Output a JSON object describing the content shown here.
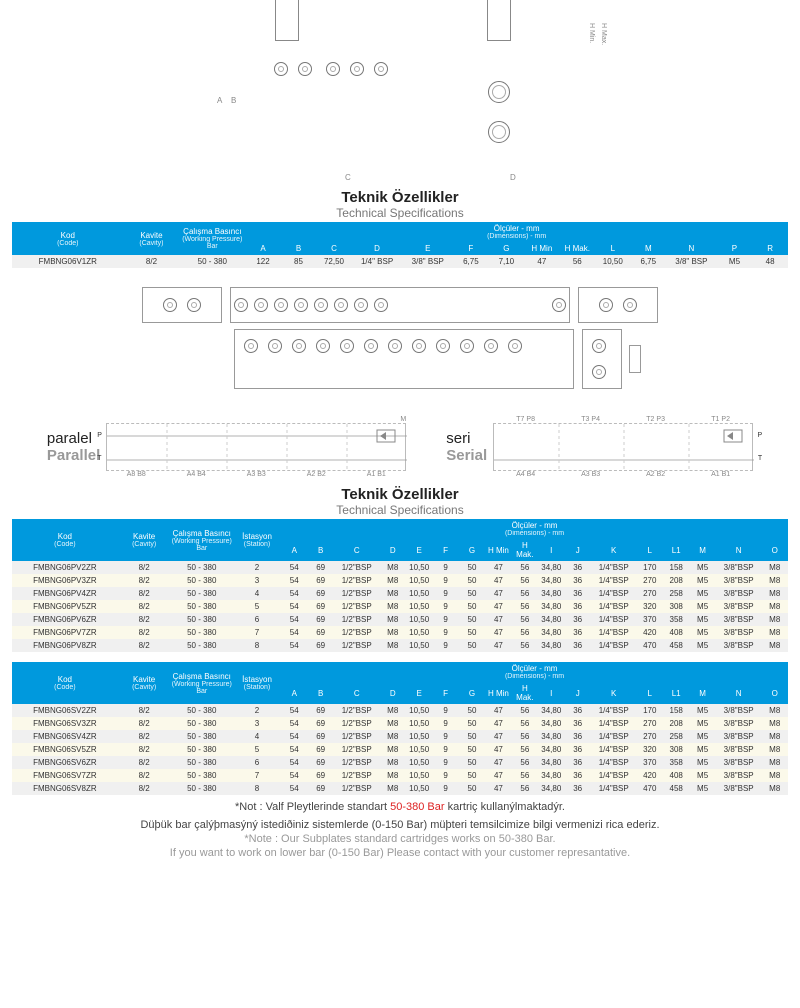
{
  "colors": {
    "headerBg": "#0099dd",
    "headerText": "#ffffff",
    "rowEven": "#fbf9ea",
    "rowOdd": "#f0f0f0",
    "red": "#d22"
  },
  "titles": {
    "spec_tr": "Teknik Özellikler",
    "spec_en": "Technical Specifications"
  },
  "circuitLabels": {
    "parallel_tr": "paralel",
    "parallel_en": "Parallel",
    "serial_tr": "seri",
    "serial_en": "Serial"
  },
  "table1": {
    "headers": {
      "code": "Kod",
      "code_en": "(Code)",
      "cavity": "Kavite",
      "cavity_en": "(Cavity)",
      "wp": "Çalışma Basıncı",
      "wp_en": "(Working Pressure)",
      "wp_unit": "Bar",
      "dims": "Ölçüler - mm",
      "dims_en": "(Dimensions) - mm",
      "cols": [
        "A",
        "B",
        "C",
        "D",
        "E",
        "F",
        "G",
        "H Min",
        "H Mak.",
        "L",
        "M",
        "N",
        "P",
        "R"
      ]
    },
    "row": {
      "code": "FMBNG06V1ZR",
      "cavity": "8/2",
      "wp": "50 - 380",
      "vals": [
        "122",
        "85",
        "72,50",
        "1/4\" BSP",
        "3/8\" BSP",
        "6,75",
        "7,10",
        "47",
        "56",
        "10,50",
        "6,75",
        "3/8\" BSP",
        "M5",
        "48"
      ]
    }
  },
  "table2": {
    "headers": {
      "code": "Kod",
      "code_en": "(Code)",
      "cavity": "Kavite",
      "cavity_en": "(Cavity)",
      "wp": "Çalışma Basıncı",
      "wp_en": "(Working Pressure)",
      "wp_unit": "Bar",
      "station": "İstasyon",
      "station_en": "(Station)",
      "dims": "Ölçüler - mm",
      "dims_en": "(Dimensions) - mm",
      "cols": [
        "A",
        "B",
        "C",
        "D",
        "E",
        "F",
        "G",
        "H Min",
        "H Mak.",
        "I",
        "J",
        "K",
        "L",
        "L1",
        "M",
        "N",
        "O"
      ]
    },
    "rows": [
      {
        "code": "FMBNG06PV2ZR",
        "cavity": "8/2",
        "wp": "50 - 380",
        "st": "2",
        "vals": [
          "54",
          "69",
          "1/2\"BSP",
          "M8",
          "10,50",
          "9",
          "50",
          "47",
          "56",
          "34,80",
          "36",
          "1/4\"BSP",
          "170",
          "158",
          "M5",
          "3/8\"BSP",
          "M8"
        ]
      },
      {
        "code": "FMBNG06PV3ZR",
        "cavity": "8/2",
        "wp": "50 - 380",
        "st": "3",
        "vals": [
          "54",
          "69",
          "1/2\"BSP",
          "M8",
          "10,50",
          "9",
          "50",
          "47",
          "56",
          "34,80",
          "36",
          "1/4\"BSP",
          "270",
          "208",
          "M5",
          "3/8\"BSP",
          "M8"
        ]
      },
      {
        "code": "FMBNG06PV4ZR",
        "cavity": "8/2",
        "wp": "50 - 380",
        "st": "4",
        "vals": [
          "54",
          "69",
          "1/2\"BSP",
          "M8",
          "10,50",
          "9",
          "50",
          "47",
          "56",
          "34,80",
          "36",
          "1/4\"BSP",
          "270",
          "258",
          "M5",
          "3/8\"BSP",
          "M8"
        ]
      },
      {
        "code": "FMBNG06PV5ZR",
        "cavity": "8/2",
        "wp": "50 - 380",
        "st": "5",
        "vals": [
          "54",
          "69",
          "1/2\"BSP",
          "M8",
          "10,50",
          "9",
          "50",
          "47",
          "56",
          "34,80",
          "36",
          "1/4\"BSP",
          "320",
          "308",
          "M5",
          "3/8\"BSP",
          "M8"
        ]
      },
      {
        "code": "FMBNG06PV6ZR",
        "cavity": "8/2",
        "wp": "50 - 380",
        "st": "6",
        "vals": [
          "54",
          "69",
          "1/2\"BSP",
          "M8",
          "10,50",
          "9",
          "50",
          "47",
          "56",
          "34,80",
          "36",
          "1/4\"BSP",
          "370",
          "358",
          "M5",
          "3/8\"BSP",
          "M8"
        ]
      },
      {
        "code": "FMBNG06PV7ZR",
        "cavity": "8/2",
        "wp": "50 - 380",
        "st": "7",
        "vals": [
          "54",
          "69",
          "1/2\"BSP",
          "M8",
          "10,50",
          "9",
          "50",
          "47",
          "56",
          "34,80",
          "36",
          "1/4\"BSP",
          "420",
          "408",
          "M5",
          "3/8\"BSP",
          "M8"
        ]
      },
      {
        "code": "FMBNG06PV8ZR",
        "cavity": "8/2",
        "wp": "50 - 380",
        "st": "8",
        "vals": [
          "54",
          "69",
          "1/2\"BSP",
          "M8",
          "10,50",
          "9",
          "50",
          "47",
          "56",
          "34,80",
          "36",
          "1/4\"BSP",
          "470",
          "458",
          "M5",
          "3/8\"BSP",
          "M8"
        ]
      }
    ]
  },
  "table3": {
    "rows": [
      {
        "code": "FMBNG06SV2ZR",
        "cavity": "8/2",
        "wp": "50 - 380",
        "st": "2",
        "vals": [
          "54",
          "69",
          "1/2\"BSP",
          "M8",
          "10,50",
          "9",
          "50",
          "47",
          "56",
          "34,80",
          "36",
          "1/4\"BSP",
          "170",
          "158",
          "M5",
          "3/8\"BSP",
          "M8"
        ]
      },
      {
        "code": "FMBNG06SV3ZR",
        "cavity": "8/2",
        "wp": "50 - 380",
        "st": "3",
        "vals": [
          "54",
          "69",
          "1/2\"BSP",
          "M8",
          "10,50",
          "9",
          "50",
          "47",
          "56",
          "34,80",
          "36",
          "1/4\"BSP",
          "270",
          "208",
          "M5",
          "3/8\"BSP",
          "M8"
        ]
      },
      {
        "code": "FMBNG06SV4ZR",
        "cavity": "8/2",
        "wp": "50 - 380",
        "st": "4",
        "vals": [
          "54",
          "69",
          "1/2\"BSP",
          "M8",
          "10,50",
          "9",
          "50",
          "47",
          "56",
          "34,80",
          "36",
          "1/4\"BSP",
          "270",
          "258",
          "M5",
          "3/8\"BSP",
          "M8"
        ]
      },
      {
        "code": "FMBNG06SV5ZR",
        "cavity": "8/2",
        "wp": "50 - 380",
        "st": "5",
        "vals": [
          "54",
          "69",
          "1/2\"BSP",
          "M8",
          "10,50",
          "9",
          "50",
          "47",
          "56",
          "34,80",
          "36",
          "1/4\"BSP",
          "320",
          "308",
          "M5",
          "3/8\"BSP",
          "M8"
        ]
      },
      {
        "code": "FMBNG06SV6ZR",
        "cavity": "8/2",
        "wp": "50 - 380",
        "st": "6",
        "vals": [
          "54",
          "69",
          "1/2\"BSP",
          "M8",
          "10,50",
          "9",
          "50",
          "47",
          "56",
          "34,80",
          "36",
          "1/4\"BSP",
          "370",
          "358",
          "M5",
          "3/8\"BSP",
          "M8"
        ]
      },
      {
        "code": "FMBNG06SV7ZR",
        "cavity": "8/2",
        "wp": "50 - 380",
        "st": "7",
        "vals": [
          "54",
          "69",
          "1/2\"BSP",
          "M8",
          "10,50",
          "9",
          "50",
          "47",
          "56",
          "34,80",
          "36",
          "1/4\"BSP",
          "420",
          "408",
          "M5",
          "3/8\"BSP",
          "M8"
        ]
      },
      {
        "code": "FMBNG06SV8ZR",
        "cavity": "8/2",
        "wp": "50 - 380",
        "st": "8",
        "vals": [
          "54",
          "69",
          "1/2\"BSP",
          "M8",
          "10,50",
          "9",
          "50",
          "47",
          "56",
          "34,80",
          "36",
          "1/4\"BSP",
          "470",
          "458",
          "M5",
          "3/8\"BSP",
          "M8"
        ]
      }
    ]
  },
  "notes": {
    "tr1": "*Not : Valf Pleytlerinde standart ",
    "tr1_red": "50-380 Bar",
    "tr1_after": " kartriç kullanýlmaktadýr.",
    "tr2": "Düþük bar çalýþmasýný istediðiniz sistemlerde (0-150 Bar) müþteri temsilcimize bilgi vermenizi rica ederiz.",
    "en1": "*Note : Our Subplates standard cartridges works on 50-380 Bar.",
    "en2": "If you want to work on lower bar (0-150 Bar) Please contact with your customer represantative."
  },
  "circuitPorts": {
    "parallel_top": "M",
    "parallel_left": "P",
    "parallel_left2": "T",
    "parallel_bottom": [
      "A8 B8",
      "A4 B4",
      "A3 B3",
      "A2 B2",
      "A1 B1"
    ],
    "serial_top": [
      "T7 P8",
      "T3 P4",
      "T2 P3",
      "T1 P2"
    ],
    "serial_right": "P",
    "serial_right2": "T",
    "serial_bottom": [
      "A4 B4",
      "A3 B3",
      "A2 B2",
      "A1 B1"
    ]
  },
  "dimLabels": {
    "hmin": "H Min.",
    "hmax": "H Max."
  }
}
